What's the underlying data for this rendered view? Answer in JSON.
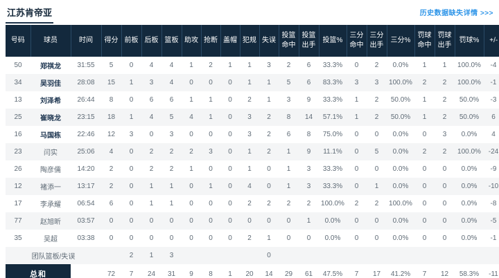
{
  "header": {
    "team_name": "江苏肯帝亚",
    "history_link": "历史数据缺失详情 >>>"
  },
  "colors": {
    "header_bg": "#13293d",
    "header_line": "#2a4a66",
    "row_alt": "#f4f5f6",
    "link_blue": "#2e95e8",
    "title_color": "#16293b",
    "text_gray": "#5f6b76",
    "starter_text": "#1d3550"
  },
  "table": {
    "columns": [
      "号码",
      "球员",
      "时间",
      "得分",
      "前板",
      "后板",
      "篮板",
      "助攻",
      "抢断",
      "盖帽",
      "犯规",
      "失误",
      "投篮\n命中",
      "投篮\n出手",
      "投篮%",
      "三分\n命中",
      "三分\n出手",
      "三分%",
      "罚球\n命中",
      "罚球\n出手",
      "罚球%",
      "+/-"
    ],
    "players": [
      {
        "no": "50",
        "name": "郑祺龙",
        "time": "31:55",
        "starter": true,
        "stats": [
          "5",
          "0",
          "4",
          "4",
          "1",
          "2",
          "1",
          "1",
          "3",
          "2",
          "6",
          "33.3%",
          "0",
          "2",
          "0.0%",
          "1",
          "1",
          "100.0%",
          "-4"
        ]
      },
      {
        "no": "34",
        "name": "吴羽佳",
        "time": "28:08",
        "starter": true,
        "stats": [
          "15",
          "1",
          "3",
          "4",
          "0",
          "0",
          "0",
          "1",
          "1",
          "5",
          "6",
          "83.3%",
          "3",
          "3",
          "100.0%",
          "2",
          "2",
          "100.0%",
          "-1"
        ]
      },
      {
        "no": "13",
        "name": "刘泽希",
        "time": "26:44",
        "starter": true,
        "stats": [
          "8",
          "0",
          "6",
          "6",
          "1",
          "1",
          "0",
          "2",
          "1",
          "3",
          "9",
          "33.3%",
          "1",
          "2",
          "50.0%",
          "1",
          "2",
          "50.0%",
          "-3"
        ]
      },
      {
        "no": "25",
        "name": "崔晓龙",
        "time": "23:15",
        "starter": true,
        "stats": [
          "18",
          "1",
          "4",
          "5",
          "4",
          "1",
          "0",
          "3",
          "2",
          "8",
          "14",
          "57.1%",
          "1",
          "2",
          "50.0%",
          "1",
          "2",
          "50.0%",
          "6"
        ]
      },
      {
        "no": "16",
        "name": "马国栋",
        "time": "22:46",
        "starter": true,
        "stats": [
          "12",
          "3",
          "0",
          "3",
          "0",
          "0",
          "0",
          "3",
          "2",
          "6",
          "8",
          "75.0%",
          "0",
          "0",
          "0.0%",
          "0",
          "3",
          "0.0%",
          "4"
        ]
      },
      {
        "no": "23",
        "name": "闫实",
        "time": "25:06",
        "starter": false,
        "stats": [
          "4",
          "0",
          "2",
          "2",
          "2",
          "3",
          "0",
          "1",
          "2",
          "1",
          "9",
          "11.1%",
          "0",
          "5",
          "0.0%",
          "2",
          "2",
          "100.0%",
          "-24"
        ]
      },
      {
        "no": "26",
        "name": "陶彦儒",
        "time": "14:20",
        "starter": false,
        "stats": [
          "2",
          "0",
          "2",
          "2",
          "1",
          "0",
          "0",
          "1",
          "0",
          "1",
          "3",
          "33.3%",
          "0",
          "0",
          "0.0%",
          "0",
          "0",
          "0.0%",
          "-9"
        ]
      },
      {
        "no": "12",
        "name": "褚添一",
        "time": "13:17",
        "starter": false,
        "stats": [
          "2",
          "0",
          "1",
          "1",
          "0",
          "1",
          "0",
          "4",
          "0",
          "1",
          "3",
          "33.3%",
          "0",
          "1",
          "0.0%",
          "0",
          "0",
          "0.0%",
          "-10"
        ]
      },
      {
        "no": "17",
        "name": "李承耀",
        "time": "06:54",
        "starter": false,
        "stats": [
          "6",
          "0",
          "1",
          "1",
          "0",
          "0",
          "0",
          "2",
          "2",
          "2",
          "2",
          "100.0%",
          "2",
          "2",
          "100.0%",
          "0",
          "0",
          "0.0%",
          "-8"
        ]
      },
      {
        "no": "77",
        "name": "赵旭昕",
        "time": "03:57",
        "starter": false,
        "stats": [
          "0",
          "0",
          "0",
          "0",
          "0",
          "0",
          "0",
          "0",
          "0",
          "0",
          "1",
          "0.0%",
          "0",
          "0",
          "0.0%",
          "0",
          "0",
          "0.0%",
          "-5"
        ]
      },
      {
        "no": "35",
        "name": "吴超",
        "time": "03:38",
        "starter": false,
        "stats": [
          "0",
          "0",
          "0",
          "0",
          "0",
          "0",
          "0",
          "2",
          "1",
          "0",
          "0",
          "0.0%",
          "0",
          "0",
          "0.0%",
          "0",
          "0",
          "0.0%",
          "-1"
        ]
      }
    ],
    "team_row": {
      "label": "团队篮板/失误",
      "stats": [
        "",
        "2",
        "1",
        "3",
        "",
        "",
        "",
        "",
        "0",
        "",
        "",
        "",
        "",
        "",
        "",
        "",
        "",
        "",
        ""
      ]
    },
    "total_row": {
      "label": "总和",
      "time": "",
      "stats": [
        "72",
        "7",
        "24",
        "31",
        "9",
        "8",
        "1",
        "20",
        "14",
        "29",
        "61",
        "47.5%",
        "7",
        "17",
        "41.2%",
        "7",
        "12",
        "58.3%",
        "-11"
      ]
    }
  }
}
